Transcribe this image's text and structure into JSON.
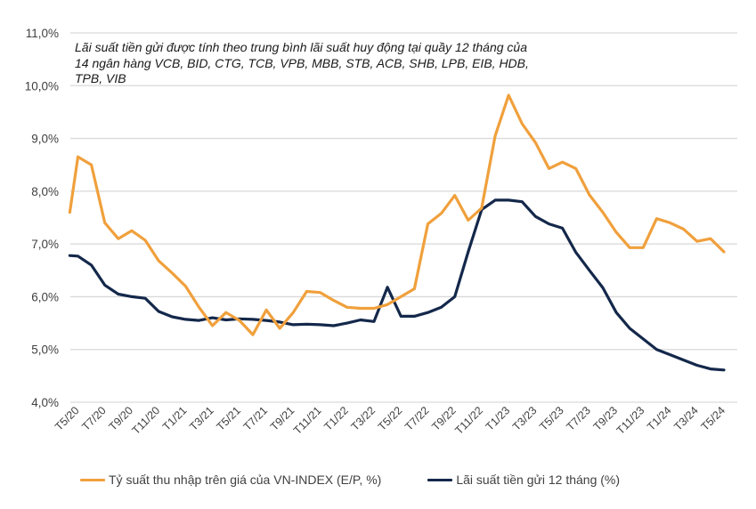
{
  "chart_data": {
    "type": "line",
    "title": "",
    "annotation": "Lãi suất tiền gửi được tính theo trung bình lãi suất huy động tại quầy 12 tháng của 14 ngân hàng VCB, BID, CTG, TCB, VPB, MBB, STB, ACB, SHB, LPB, EIB, HDB, TPB, VIB",
    "xlabel": "",
    "ylabel": "",
    "ylim": [
      4.0,
      11.0
    ],
    "yticks": [
      4.0,
      5.0,
      6.0,
      7.0,
      8.0,
      9.0,
      10.0,
      11.0
    ],
    "ytick_labels": [
      "4,0%",
      "5,0%",
      "6,0%",
      "7,0%",
      "8,0%",
      "9,0%",
      "10,0%",
      "11,0%"
    ],
    "grid": "horizontal",
    "x_labels": [
      "T5/20",
      "T7/20",
      "T9/20",
      "T11/20",
      "T1/21",
      "T3/21",
      "T5/21",
      "T7/21",
      "T9/21",
      "T11/21",
      "T1/22",
      "T3/22",
      "T5/22",
      "T7/22",
      "T9/22",
      "T11/22",
      "T1/23",
      "T3/23",
      "T5/23",
      "T7/23",
      "T9/23",
      "T11/23",
      "T1/24",
      "T3/24",
      "T5/24"
    ],
    "x_label_step_months": 2,
    "x_months": [
      -0.6,
      0,
      1,
      2,
      3,
      4,
      5,
      6,
      7,
      8,
      9,
      10,
      11,
      12,
      13,
      14,
      15,
      16,
      17,
      18,
      19,
      20,
      21,
      22,
      23,
      24,
      25,
      26,
      27,
      28,
      29,
      30,
      31,
      32,
      33,
      34,
      35,
      36,
      37,
      38,
      39,
      40,
      41,
      42,
      43,
      44,
      45,
      46,
      47,
      48
    ],
    "legend_position": "bottom",
    "series": [
      {
        "name": "Tỷ suất thu nhập trên giá của VN-INDEX (E/P, %)",
        "color": "#F0A03C",
        "values": [
          7.6,
          8.65,
          8.5,
          7.4,
          7.1,
          7.25,
          7.07,
          6.68,
          6.45,
          6.2,
          5.8,
          5.45,
          5.7,
          5.55,
          5.28,
          5.75,
          5.4,
          5.7,
          6.1,
          6.08,
          5.93,
          5.8,
          5.78,
          5.78,
          5.85,
          6.0,
          6.15,
          7.38,
          7.58,
          7.92,
          7.45,
          7.68,
          9.05,
          9.82,
          9.28,
          8.92,
          8.43,
          8.55,
          8.43,
          7.93,
          7.6,
          7.22,
          6.93,
          6.93,
          7.48,
          7.4,
          7.28,
          7.05,
          7.1,
          6.85
        ]
      },
      {
        "name": "Lãi suất tiền gửi 12 tháng (%)",
        "color": "#14284B",
        "values": [
          6.78,
          6.77,
          6.6,
          6.22,
          6.05,
          6.0,
          5.97,
          5.72,
          5.62,
          5.57,
          5.55,
          5.6,
          5.56,
          5.58,
          5.57,
          5.55,
          5.52,
          5.47,
          5.48,
          5.47,
          5.45,
          5.5,
          5.56,
          5.53,
          6.18,
          5.63,
          5.63,
          5.7,
          5.8,
          6.0,
          6.85,
          7.65,
          7.83,
          7.83,
          7.8,
          7.52,
          7.38,
          7.3,
          6.84,
          6.5,
          6.17,
          5.7,
          5.4,
          5.2,
          5.0,
          4.9,
          4.8,
          4.7,
          4.63,
          4.61
        ]
      }
    ]
  }
}
